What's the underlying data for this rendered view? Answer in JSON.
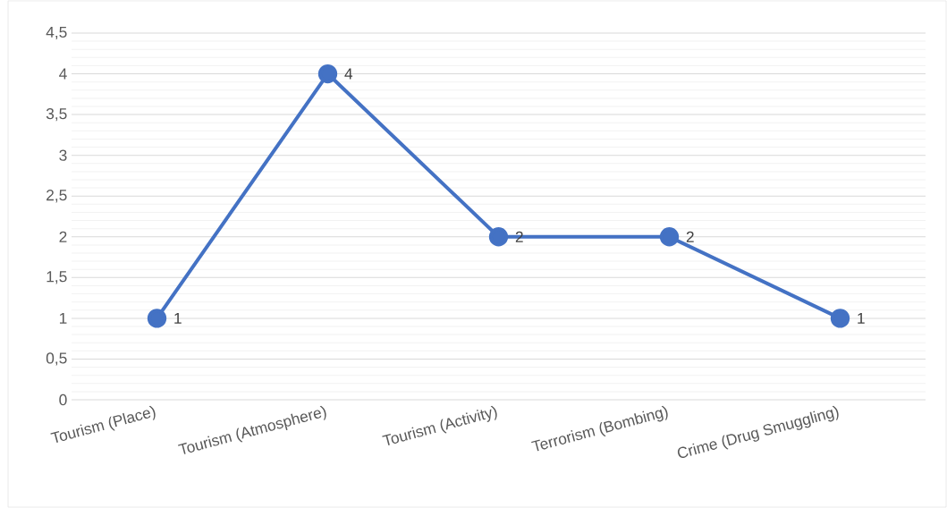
{
  "chart_data": {
    "type": "line",
    "categories": [
      "Tourism (Place)",
      "Tourism (Atmosphere)",
      "Tourism (Activity)",
      "Terrorism (Bombing)",
      "Crime (Drug Smuggling)"
    ],
    "values": [
      1,
      4,
      2,
      2,
      1
    ],
    "color": "#4472c4",
    "ylim": [
      0,
      4.5
    ],
    "yticks": [
      0,
      {
        "value": 0.5,
        "label": "0,5"
      },
      1,
      {
        "value": 1.5,
        "label": "1,5"
      },
      2,
      {
        "value": 2.5,
        "label": "2,5"
      },
      3,
      {
        "value": 3.5,
        "label": "3,5"
      },
      4,
      {
        "value": 4.5,
        "label": "4,5"
      }
    ],
    "grid": "y",
    "marker": "circle",
    "data_labels": true
  }
}
